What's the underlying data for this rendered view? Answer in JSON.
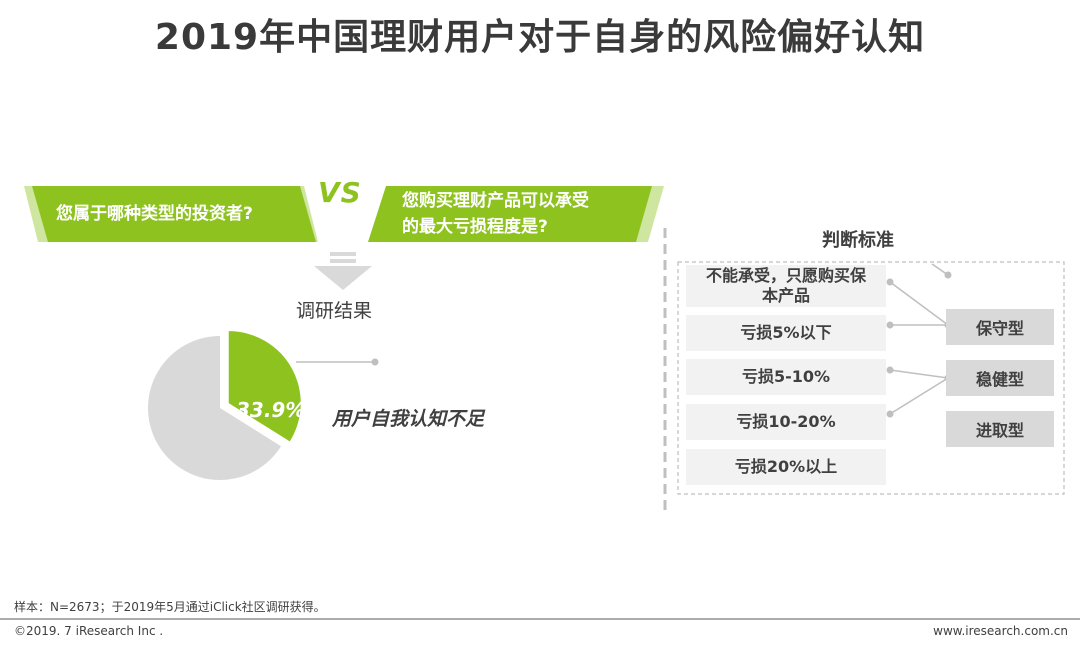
{
  "title": "2019年中国理财用户对于自身的风险偏好认知",
  "question_left": "您属于哪种类型的投资者?",
  "vs_label": "VS",
  "question_right_line1": "您购买理财产品可以承受",
  "question_right_line2": "的最大亏损程度是?",
  "result_label": "调研结果",
  "callout": "用户自我认知不足",
  "criteria": {
    "title": "判断标准",
    "loss_levels": [
      {
        "line1": "不能承受，只愿购买保",
        "line2": "本产品"
      },
      {
        "line1": "亏损5%以下",
        "line2": ""
      },
      {
        "line1": "亏损5-10%",
        "line2": ""
      },
      {
        "line1": "亏损10-20%",
        "line2": ""
      },
      {
        "line1": "亏损20%以上",
        "line2": ""
      }
    ],
    "types": [
      "保守型",
      "稳健型",
      "进取型"
    ]
  },
  "chart_data": {
    "type": "pie",
    "slices": [
      {
        "label": "33.9%",
        "value": 33.9,
        "color": "#8dc21f"
      },
      {
        "label": "",
        "value": 66.1,
        "color": "#d9d9d9"
      }
    ],
    "title": ""
  },
  "footer": {
    "note": "样本：N=2673；于2019年5月通过iClick社区调研获得。",
    "copyright": "©2019. 7 iResearch Inc .",
    "site": "www.iresearch.com.cn"
  },
  "colors": {
    "accent": "#8dc21f",
    "gray": "#d9d9d9",
    "text": "#404040"
  }
}
